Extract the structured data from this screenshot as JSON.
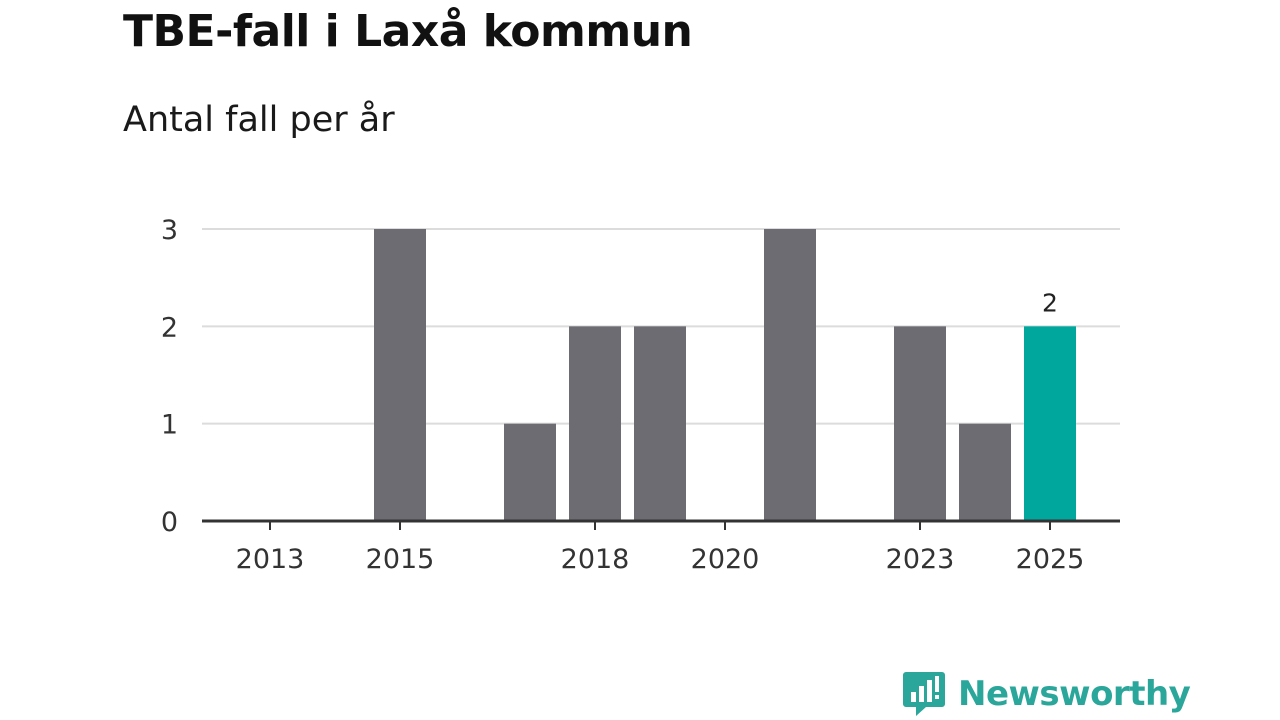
{
  "title": "TBE-fall i Laxå kommun",
  "subtitle": "Antal fall per år",
  "brand": {
    "name": "Newsworthy",
    "icon": "newsworthy-logo-icon",
    "color": "#2aa69a"
  },
  "chart_data": {
    "type": "bar",
    "categories": [
      "2013",
      "2014",
      "2015",
      "2016",
      "2017",
      "2018",
      "2019",
      "2020",
      "2021",
      "2022",
      "2023",
      "2024",
      "2025"
    ],
    "values": [
      0,
      0,
      3,
      0,
      1,
      2,
      2,
      0,
      3,
      0,
      2,
      1,
      2
    ],
    "x_tick_labels": [
      "2013",
      "2015",
      "2018",
      "2020",
      "2023",
      "2025"
    ],
    "y_ticks": [
      0,
      1,
      2,
      3
    ],
    "ylim": [
      0,
      3
    ],
    "grid": true,
    "bar_color": "#6d6c73",
    "highlight_color": "#00a79d",
    "highlight_category": "2025",
    "data_labels": [
      {
        "category": "2025",
        "text": "2"
      }
    ],
    "title": "TBE-fall i Laxå kommun",
    "subtitle": "Antal fall per år",
    "xlabel": "",
    "ylabel": ""
  }
}
